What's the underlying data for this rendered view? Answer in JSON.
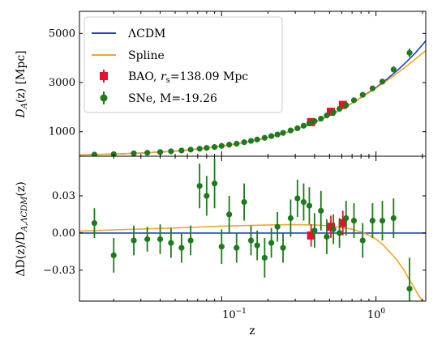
{
  "chart_data": [
    {
      "type": "line",
      "panel": "top",
      "ylabel": "D_A(z) [Mpc]",
      "xscale": "log",
      "xlim": [
        0.012,
        2.1
      ],
      "ylim": [
        0,
        5900
      ],
      "yticks": [
        1000,
        3000,
        5000
      ],
      "ytick_labels": [
        "1000",
        "3000",
        "5000"
      ],
      "legend_position": "upper-left",
      "series": [
        {
          "name": "ΛCDM",
          "kind": "line",
          "color": "#1f3fd6",
          "x": [
            0.012,
            0.02,
            0.03,
            0.05,
            0.07,
            0.1,
            0.15,
            0.2,
            0.3,
            0.4,
            0.5,
            0.6,
            0.7,
            0.8,
            1.0,
            1.2,
            1.4,
            1.6,
            1.8,
            2.0,
            2.1
          ],
          "y": [
            52,
            86,
            128,
            209,
            289,
            405,
            587,
            760,
            1085,
            1385,
            1662,
            1920,
            2160,
            2385,
            2800,
            3180,
            3540,
            3880,
            4210,
            4540,
            4700
          ]
        },
        {
          "name": "Spline",
          "kind": "line",
          "color": "#f5a623",
          "x": [
            0.012,
            0.02,
            0.03,
            0.05,
            0.07,
            0.1,
            0.15,
            0.2,
            0.3,
            0.4,
            0.5,
            0.6,
            0.7,
            0.8,
            1.0,
            1.2,
            1.4,
            1.6,
            1.8,
            2.0,
            2.1
          ],
          "y": [
            52,
            86,
            128,
            209,
            290,
            406,
            589,
            763,
            1090,
            1392,
            1668,
            1925,
            2162,
            2380,
            2770,
            3110,
            3420,
            3700,
            3960,
            4190,
            4300
          ]
        },
        {
          "name": "BAO, r_s=138.09 Mpc",
          "kind": "errorbar",
          "color": "#e8112d",
          "marker": "square",
          "x": [
            0.38,
            0.51,
            0.61
          ],
          "y": [
            1390,
            1810,
            2090
          ],
          "err": [
            60,
            70,
            80
          ]
        },
        {
          "name": "SNe, M=-19.26",
          "kind": "errorbar",
          "color": "#1d7a1d",
          "marker": "circle",
          "x": [
            0.015,
            0.02,
            0.027,
            0.033,
            0.04,
            0.047,
            0.055,
            0.063,
            0.072,
            0.08,
            0.09,
            0.1,
            0.112,
            0.125,
            0.14,
            0.155,
            0.17,
            0.19,
            0.21,
            0.23,
            0.25,
            0.28,
            0.31,
            0.34,
            0.37,
            0.4,
            0.44,
            0.48,
            0.53,
            0.58,
            0.64,
            0.72,
            0.82,
            0.95,
            1.1,
            1.3,
            1.65
          ],
          "y": [
            65,
            85,
            118,
            140,
            170,
            198,
            232,
            268,
            305,
            340,
            375,
            420,
            470,
            510,
            570,
            625,
            680,
            750,
            820,
            885,
            950,
            1050,
            1140,
            1240,
            1340,
            1430,
            1530,
            1660,
            1790,
            1930,
            2080,
            2280,
            2500,
            2760,
            3040,
            3530,
            4210
          ],
          "err": [
            8,
            9,
            10,
            10,
            12,
            12,
            14,
            15,
            16,
            18,
            20,
            22,
            24,
            26,
            28,
            30,
            32,
            35,
            38,
            40,
            42,
            45,
            48,
            50,
            52,
            55,
            58,
            60,
            62,
            65,
            70,
            75,
            80,
            90,
            100,
            120,
            180
          ]
        }
      ]
    },
    {
      "type": "line",
      "panel": "bottom",
      "xlabel": "z",
      "ylabel": "ΔD(z)/D_A,ΛCDM(z)",
      "xscale": "log",
      "xlim": [
        0.012,
        2.1
      ],
      "ylim": [
        -0.055,
        0.062
      ],
      "xticks": [
        0.1,
        1.0
      ],
      "xtick_labels": [
        "10^-1",
        "10^0"
      ],
      "yticks": [
        -0.03,
        0.0,
        0.03
      ],
      "ytick_labels": [
        "−0.03",
        "0.00",
        "0.03"
      ],
      "series": [
        {
          "name": "ΛCDM",
          "kind": "line",
          "color": "#1f3fd6",
          "x": [
            0.012,
            2.1
          ],
          "y": [
            0.0,
            0.0
          ]
        },
        {
          "name": "Spline",
          "kind": "line",
          "color": "#f5a623",
          "x": [
            0.012,
            0.02,
            0.05,
            0.1,
            0.2,
            0.3,
            0.4,
            0.5,
            0.6,
            0.7,
            0.8,
            0.9,
            1.0,
            1.1,
            1.2,
            1.35,
            1.5,
            1.65,
            1.8,
            1.95,
            2.1
          ],
          "y": [
            0.0015,
            0.0025,
            0.004,
            0.0055,
            0.0065,
            0.0068,
            0.0065,
            0.0058,
            0.0045,
            0.003,
            0.0008,
            -0.0018,
            -0.005,
            -0.009,
            -0.014,
            -0.021,
            -0.029,
            -0.038,
            -0.046,
            -0.053,
            -0.06
          ]
        },
        {
          "name": "BAO, r_s=138.09 Mpc",
          "kind": "errorbar",
          "color": "#e8112d",
          "marker": "square",
          "x": [
            0.38,
            0.51,
            0.61
          ],
          "y": [
            -0.002,
            0.005,
            0.008
          ],
          "err": [
            0.009,
            0.009,
            0.01
          ]
        },
        {
          "name": "SNe, M=-19.26",
          "kind": "errorbar",
          "color": "#1d7a1d",
          "marker": "circle",
          "x": [
            0.015,
            0.02,
            0.027,
            0.033,
            0.04,
            0.047,
            0.055,
            0.063,
            0.072,
            0.08,
            0.09,
            0.1,
            0.112,
            0.125,
            0.14,
            0.155,
            0.17,
            0.19,
            0.21,
            0.23,
            0.25,
            0.28,
            0.31,
            0.34,
            0.37,
            0.4,
            0.44,
            0.48,
            0.53,
            0.58,
            0.64,
            0.72,
            0.82,
            0.95,
            1.1,
            1.3,
            1.65
          ],
          "y": [
            0.008,
            -0.018,
            -0.006,
            -0.005,
            -0.005,
            -0.008,
            -0.012,
            -0.006,
            0.038,
            0.03,
            0.04,
            -0.011,
            0.015,
            -0.012,
            0.025,
            -0.006,
            -0.01,
            -0.02,
            -0.008,
            0.005,
            -0.012,
            0.012,
            0.028,
            0.025,
            0.022,
            0.002,
            0.018,
            -0.003,
            0.003,
            0.0,
            0.012,
            0.01,
            -0.006,
            0.01,
            0.01,
            0.012,
            -0.045
          ],
          "err": [
            0.012,
            0.014,
            0.012,
            0.01,
            0.012,
            0.012,
            0.012,
            0.012,
            0.018,
            0.016,
            0.02,
            0.014,
            0.015,
            0.012,
            0.015,
            0.012,
            0.012,
            0.016,
            0.012,
            0.012,
            0.012,
            0.015,
            0.015,
            0.015,
            0.015,
            0.014,
            0.016,
            0.014,
            0.012,
            0.012,
            0.014,
            0.014,
            0.014,
            0.014,
            0.016,
            0.016,
            0.025
          ]
        }
      ]
    }
  ],
  "legend": {
    "lcdm": "ΛCDM",
    "spline": "Spline",
    "bao_prefix": "BAO, ",
    "bao_r": "r",
    "bao_sub": "s",
    "bao_suffix": "=138.09 Mpc",
    "sne": "SNe, M=-19.26"
  },
  "labels": {
    "top_y_main": "D",
    "top_y_sub": "A",
    "top_y_tail": "(z) [Mpc]",
    "bottom_y_head": "ΔD(z)/D",
    "bottom_y_sub": "A,ΛCDM",
    "bottom_y_tail": "(z)",
    "x_label": "z",
    "xtick_1_base": "10",
    "xtick_1_exp": "−1",
    "xtick_2_base": "10",
    "xtick_2_exp": "0",
    "ytick_top": [
      "1000",
      "3000",
      "5000"
    ],
    "ytick_bottom": [
      "−0.03",
      "0.00",
      "0.03"
    ]
  }
}
